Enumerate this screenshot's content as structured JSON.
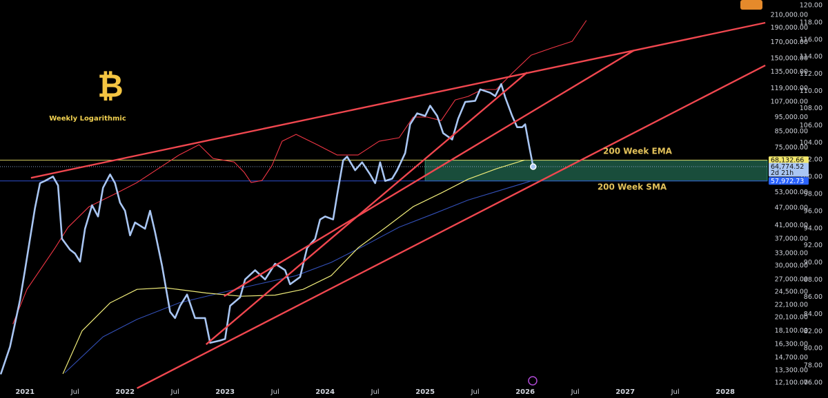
{
  "chart_data": {
    "type": "line",
    "logo": "₿",
    "subtitle": "Weekly Logarithmic",
    "log_scale": true,
    "grid": false,
    "xlim": [
      2020.75,
      2028.42
    ],
    "xticks": [
      {
        "value": 2021,
        "label": "2021"
      },
      {
        "value": 2021.5,
        "label": "Jul"
      },
      {
        "value": 2022,
        "label": "2022"
      },
      {
        "value": 2022.5,
        "label": "Jul"
      },
      {
        "value": 2023,
        "label": "2023"
      },
      {
        "value": 2023.5,
        "label": "Jul"
      },
      {
        "value": 2024,
        "label": "2024"
      },
      {
        "value": 2024.5,
        "label": "Jul"
      },
      {
        "value": 2025,
        "label": "2025"
      },
      {
        "value": 2025.5,
        "label": "Jul"
      },
      {
        "value": 2026,
        "label": "2026"
      },
      {
        "value": 2026.5,
        "label": "Jul"
      },
      {
        "value": 2027,
        "label": "2027"
      },
      {
        "value": 2027.5,
        "label": "Jul"
      },
      {
        "value": 2028,
        "label": "2028"
      }
    ],
    "ylim": [
      11840,
      236200
    ],
    "yticks": [
      {
        "value": 210000,
        "label": "210,000.00"
      },
      {
        "value": 190000,
        "label": "190,000.00"
      },
      {
        "value": 170000,
        "label": "170,000.00"
      },
      {
        "value": 150000,
        "label": "150,000.00"
      },
      {
        "value": 135000,
        "label": "135,000.00"
      },
      {
        "value": 119000,
        "label": "119,000.00"
      },
      {
        "value": 107000,
        "label": "107,000.00"
      },
      {
        "value": 95000,
        "label": "95,000.00"
      },
      {
        "value": 85000,
        "label": "85,000.00"
      },
      {
        "value": 75000,
        "label": "75,000.00"
      },
      {
        "value": 53000,
        "label": "53,000.00"
      },
      {
        "value": 47000,
        "label": "47,000.00"
      },
      {
        "value": 41000,
        "label": "41,000.00"
      },
      {
        "value": 37000,
        "label": "37,000.00"
      },
      {
        "value": 33000,
        "label": "33,000.00"
      },
      {
        "value": 30000,
        "label": "30,000.00"
      },
      {
        "value": 27000,
        "label": "27,000.00"
      },
      {
        "value": 24500,
        "label": "24,500.00"
      },
      {
        "value": 22100,
        "label": "22,100.00"
      },
      {
        "value": 20100,
        "label": "20,100.00"
      },
      {
        "value": 18100,
        "label": "18,100.00"
      },
      {
        "value": 16300,
        "label": "16,300.00"
      },
      {
        "value": 14700,
        "label": "14,700.00"
      },
      {
        "value": 13300,
        "label": "13,300.00"
      },
      {
        "value": 12100,
        "label": "12,100.00"
      }
    ],
    "y2lim": [
      75.68,
      120.64
    ],
    "y2ticks": [
      {
        "value": 120,
        "label": "120.00"
      },
      {
        "value": 118,
        "label": "118.00"
      },
      {
        "value": 116,
        "label": "116.00"
      },
      {
        "value": 114,
        "label": "114.00"
      },
      {
        "value": 112,
        "label": "112.00"
      },
      {
        "value": 110,
        "label": "110.00"
      },
      {
        "value": 108,
        "label": "108.00"
      },
      {
        "value": 106,
        "label": "106.00"
      },
      {
        "value": 104,
        "label": "104.00"
      },
      {
        "value": 102,
        "label": "102.00"
      },
      {
        "value": 100,
        "label": "100.00"
      },
      {
        "value": 98,
        "label": "98.00"
      },
      {
        "value": 96,
        "label": "96.00"
      },
      {
        "value": 94,
        "label": "94.00"
      },
      {
        "value": 92,
        "label": "92.00"
      },
      {
        "value": 90,
        "label": "90.00"
      },
      {
        "value": 88,
        "label": "88.00"
      },
      {
        "value": 86,
        "label": "86.00"
      },
      {
        "value": 84,
        "label": "84.00"
      },
      {
        "value": 82,
        "label": "82.00"
      },
      {
        "value": 80,
        "label": "80.00"
      },
      {
        "value": 78,
        "label": "78.00"
      },
      {
        "value": 76,
        "label": "76.00"
      }
    ],
    "series": [
      {
        "color": "#a9c6f3",
        "width": 2.6,
        "x": [
          2020.76,
          2020.85,
          2020.95,
          2021.0,
          2021.05,
          2021.1,
          2021.15,
          2021.2,
          2021.28,
          2021.33,
          2021.37,
          2021.45,
          2021.5,
          2021.55,
          2021.6,
          2021.67,
          2021.73,
          2021.78,
          2021.85,
          2021.9,
          2021.95,
          2022.0,
          2022.05,
          2022.1,
          2022.2,
          2022.25,
          2022.3,
          2022.37,
          2022.45,
          2022.5,
          2022.55,
          2022.62,
          2022.7,
          2022.8,
          2022.85,
          2022.95,
          2023.0,
          2023.05,
          2023.15,
          2023.2,
          2023.3,
          2023.4,
          2023.5,
          2023.6,
          2023.65,
          2023.75,
          2023.82,
          2023.9,
          2023.95,
          2024.0,
          2024.08,
          2024.12,
          2024.18,
          2024.22,
          2024.3,
          2024.37,
          2024.45,
          2024.5,
          2024.55,
          2024.6,
          2024.67,
          2024.72,
          2024.8,
          2024.85,
          2024.92,
          2025.0,
          2025.05,
          2025.12,
          2025.18,
          2025.27,
          2025.33,
          2025.4,
          2025.5,
          2025.55,
          2025.65,
          2025.7,
          2025.76,
          2025.8,
          2025.87,
          2025.92,
          2025.97,
          2026.0,
          2026.04,
          2026.08
        ],
        "values": [
          13000,
          16000,
          23000,
          29000,
          37000,
          47000,
          57000,
          58000,
          60000,
          56000,
          37000,
          34000,
          33000,
          31000,
          40000,
          48000,
          44000,
          55000,
          61000,
          57000,
          49000,
          46000,
          38000,
          42000,
          40000,
          46000,
          39000,
          30000,
          21000,
          20000,
          22000,
          24000,
          20000,
          20000,
          16500,
          16800,
          17000,
          22000,
          23500,
          27000,
          29000,
          27000,
          30500,
          29000,
          26000,
          27500,
          34500,
          37000,
          43000,
          44000,
          43000,
          52000,
          68000,
          70000,
          63000,
          67000,
          61000,
          57000,
          67000,
          58000,
          59000,
          63000,
          72000,
          90000,
          98000,
          96000,
          104000,
          96000,
          84000,
          80000,
          94000,
          107000,
          108000,
          118000,
          115000,
          112000,
          123000,
          111000,
          96000,
          88000,
          88000,
          90000,
          76000,
          64774.52
        ]
      },
      {
        "color": "#f23645",
        "width": 1.1,
        "axis": "y2",
        "x": [
          2020.88,
          2021.02,
          2021.3,
          2021.43,
          2021.64,
          2021.78,
          2021.92,
          2022.12,
          2022.33,
          2022.54,
          2022.74,
          2022.88,
          2023.09,
          2023.19,
          2023.26,
          2023.37,
          2023.47,
          2023.57,
          2023.71,
          2023.92,
          2024.12,
          2024.33,
          2024.54,
          2024.74,
          2024.88,
          2025.02,
          2025.16,
          2025.3,
          2025.43,
          2025.57,
          2025.71,
          2025.88,
          2026.06,
          2026.26,
          2026.47,
          2026.61
        ],
        "values": [
          82.89,
          86.91,
          91.72,
          94.13,
          96.54,
          97.35,
          98.15,
          99.36,
          100.96,
          102.57,
          103.77,
          102.17,
          101.76,
          100.56,
          99.36,
          99.6,
          101.36,
          104.17,
          104.98,
          103.77,
          102.57,
          102.57,
          104.17,
          104.58,
          106.99,
          106.99,
          106.58,
          108.99,
          109.4,
          110.2,
          110.2,
          112.21,
          114.21,
          115.02,
          115.82,
          118.23
        ]
      },
      {
        "name": "200 Week EMA",
        "color": "#f0ec7a",
        "width": 1.2,
        "x": [
          2021.38,
          2021.57,
          2021.85,
          2022.12,
          2022.4,
          2022.81,
          2023.16,
          2023.5,
          2023.78,
          2024.06,
          2024.33,
          2024.61,
          2024.88,
          2025.16,
          2025.43,
          2025.71,
          2025.99
        ],
        "values": [
          13000,
          18100,
          22500,
          25000,
          25300,
          24300,
          23700,
          23900,
          25000,
          27800,
          34500,
          40500,
          47500,
          52800,
          58800,
          63700,
          68132.66
        ]
      },
      {
        "name": "200 Week SMA",
        "color": "#3350b8",
        "width": 1.1,
        "x": [
          2021.4,
          2021.78,
          2022.12,
          2022.54,
          2022.95,
          2023.37,
          2023.71,
          2024.06,
          2024.4,
          2024.74,
          2025.09,
          2025.43,
          2025.71,
          2026.06
        ],
        "values": [
          13100,
          17300,
          19800,
          22500,
          24300,
          26200,
          27800,
          30800,
          35200,
          40500,
          45000,
          50000,
          53400,
          57972.73
        ]
      }
    ],
    "trendline_color": "#f0474f",
    "trendlines": [
      {
        "x": [
          2021.06,
          2028.4
        ],
        "values": [
          59400,
          198000
        ]
      },
      {
        "x": [
          2022.81,
          2026.02
        ],
        "values": [
          16300,
          134700
        ]
      },
      {
        "x": [
          2022.99,
          2027.09
        ],
        "values": [
          23700,
          159900
        ]
      },
      {
        "x": [
          2022.12,
          2028.4
        ],
        "values": [
          11600,
          142200
        ]
      }
    ],
    "zone": {
      "x": [
        2025.0,
        2028.42
      ],
      "values": [
        57972.73,
        68132.66
      ],
      "color": "#1d5a45"
    },
    "price_tags": [
      {
        "value": 68132.66,
        "label": "68,132.66",
        "color": "#f3e86c",
        "text_color": "#111111",
        "line": "#d8d060"
      },
      {
        "value": 64774.52,
        "label": "64,774.52",
        "sub": "2d 21h",
        "color": "#a9c6f3",
        "text_color": "#111111",
        "line": "#8aa2cc"
      },
      {
        "value": 57972.73,
        "label": "57,972.73",
        "color": "#2962ff",
        "text_color": "#ffffff",
        "line": "#2e4fd0"
      }
    ]
  }
}
